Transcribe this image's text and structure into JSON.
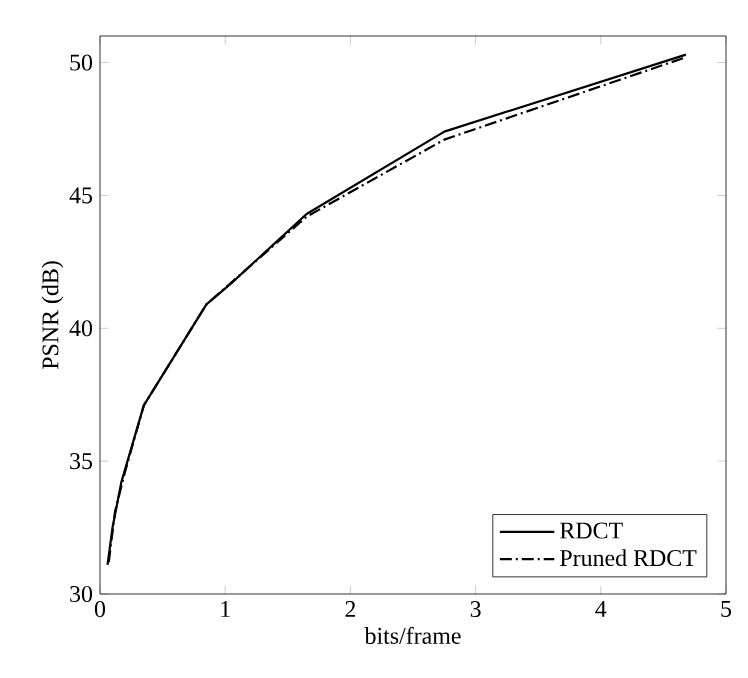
{
  "chart_data": {
    "type": "line",
    "xlabel": "bits/frame",
    "ylabel": "PSNR (dB)",
    "xlim": [
      0,
      5
    ],
    "ylim": [
      30,
      51
    ],
    "xticks": [
      0,
      1,
      2,
      3,
      4,
      5
    ],
    "yticks": [
      30,
      35,
      40,
      45,
      50
    ],
    "legend": "bottom right",
    "grid": false,
    "series": [
      {
        "name": "RDCT",
        "color": "#000000",
        "line_style": "solid",
        "x": [
          0.06,
          0.1,
          0.17,
          0.35,
          0.85,
          1.05,
          1.65,
          2.75,
          4.68
        ],
        "values": [
          31.1,
          32.5,
          34.2,
          37.1,
          40.9,
          41.7,
          44.3,
          47.4,
          50.3
        ]
      },
      {
        "name": "Pruned RDCT",
        "color": "#000000",
        "line_style": "dashdot",
        "x": [
          0.07,
          0.12,
          0.2,
          0.35,
          0.85,
          1.65,
          2.75,
          4.68
        ],
        "values": [
          31.2,
          33.1,
          34.6,
          37.1,
          40.9,
          44.2,
          47.1,
          50.2
        ]
      }
    ]
  }
}
